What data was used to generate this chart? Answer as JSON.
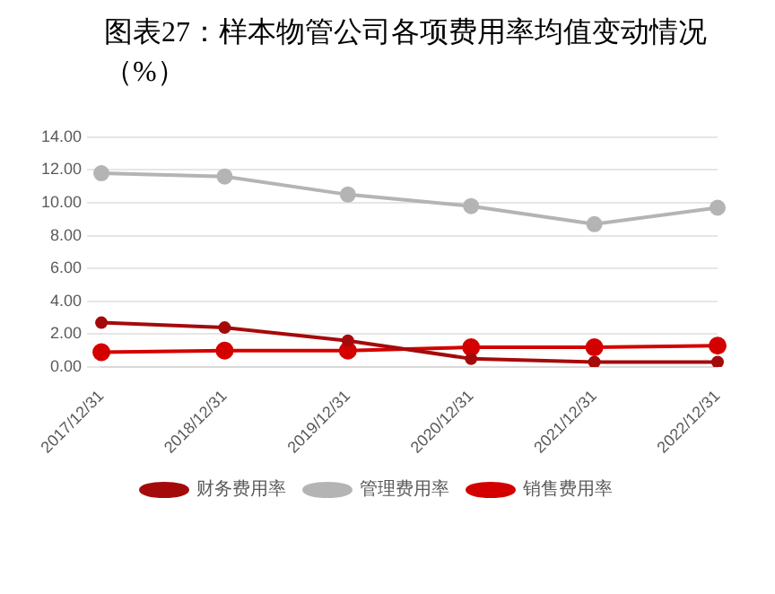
{
  "chart_data": {
    "type": "line",
    "title": "图表27：样本物管公司各项费用率均值变动情况（%）",
    "categories": [
      "2017/12/31",
      "2018/12/31",
      "2019/12/31",
      "2020/12/31",
      "2021/12/31",
      "2022/12/31"
    ],
    "series": [
      {
        "name": "财务费用率",
        "color": "#a50a0a",
        "values": [
          2.7,
          2.4,
          1.6,
          0.5,
          0.3,
          0.3
        ]
      },
      {
        "name": "管理费用率",
        "color": "#b4b4b4",
        "values": [
          11.8,
          11.6,
          10.5,
          9.8,
          8.7,
          9.7
        ]
      },
      {
        "name": "销售费用率",
        "color": "#d40000",
        "values": [
          0.9,
          1.0,
          1.0,
          1.2,
          1.2,
          1.3
        ]
      }
    ],
    "ylim": [
      0,
      14
    ],
    "yticks": [
      {
        "value": 0,
        "label": "0.00"
      },
      {
        "value": 2,
        "label": "2.00"
      },
      {
        "value": 4,
        "label": "4.00"
      },
      {
        "value": 6,
        "label": "6.00"
      },
      {
        "value": 8,
        "label": "8.00"
      },
      {
        "value": 10,
        "label": "10.00"
      },
      {
        "value": 12,
        "label": "12.00"
      },
      {
        "value": 14,
        "label": "14.00"
      }
    ],
    "grid": "y",
    "legend": "bottom",
    "marker": "circle",
    "line_style": "solid"
  }
}
